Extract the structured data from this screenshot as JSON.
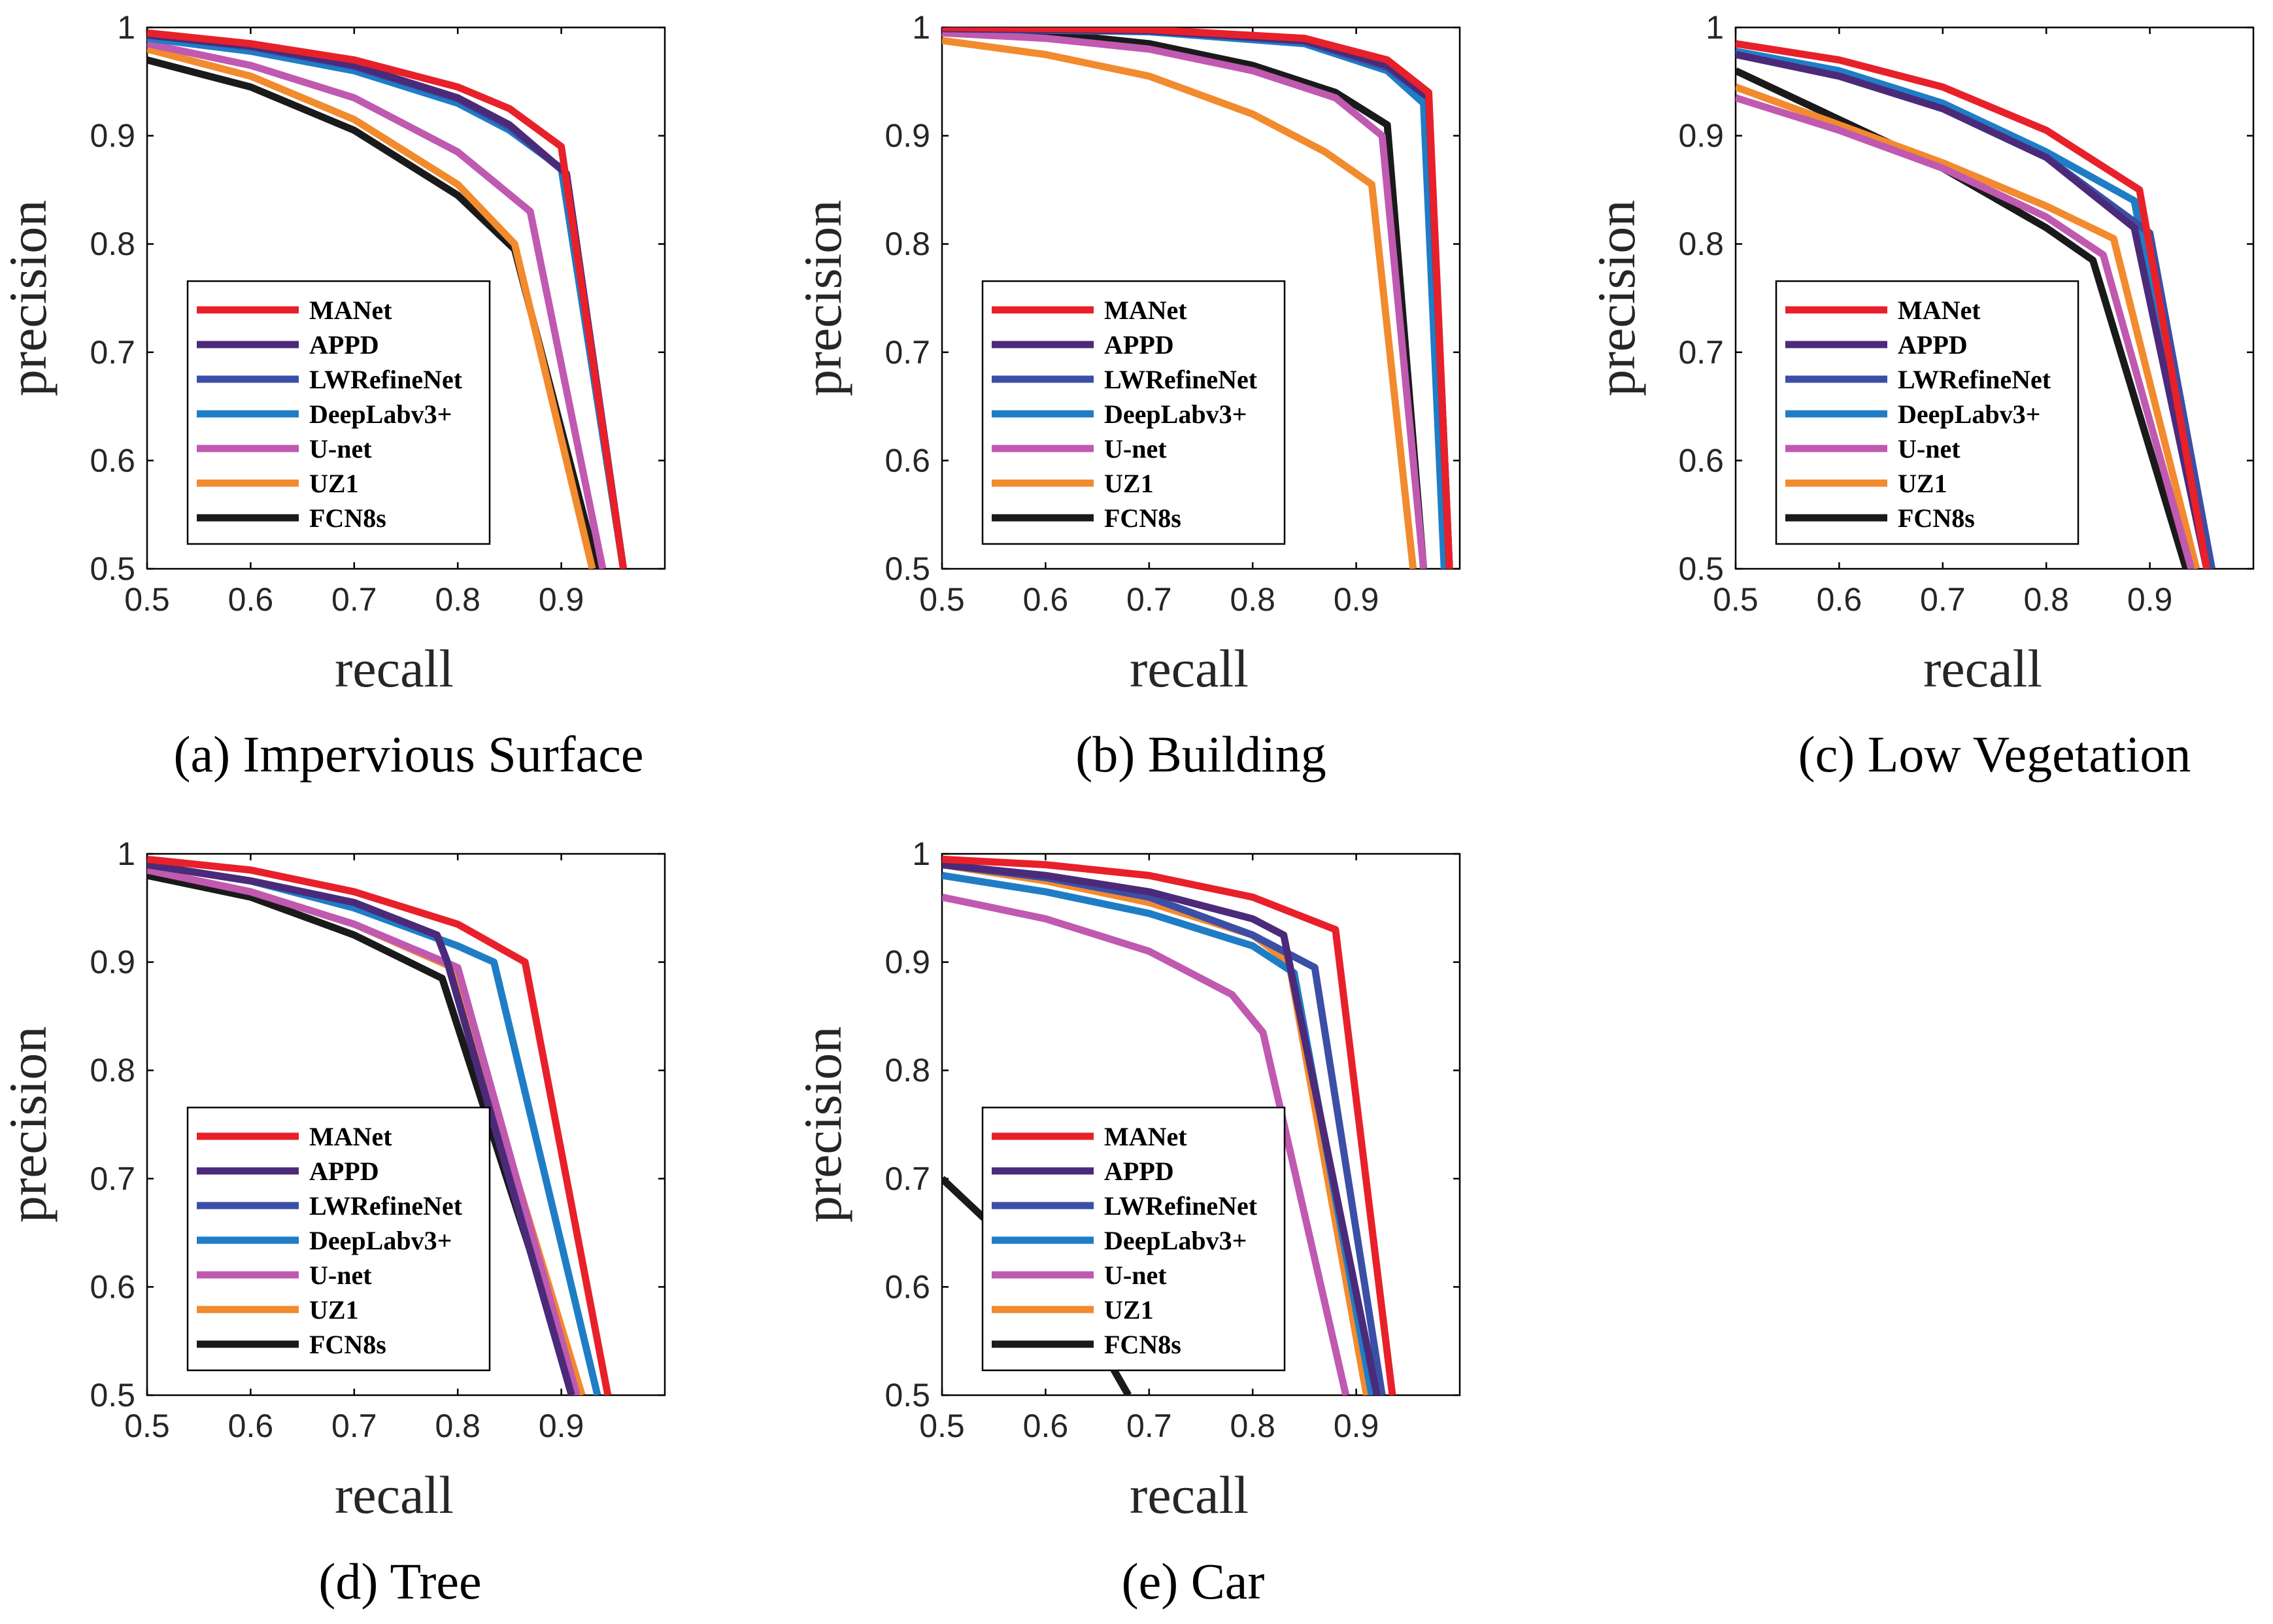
{
  "figure": {
    "series_colors": {
      "MANet": "#e8202a",
      "APPD": "#4b2a7a",
      "LWRefineNet": "#3b4fa6",
      "DeepLabv3+": "#1f7dc6",
      "U-net": "#c059b0",
      "UZ1": "#f28a2e",
      "FCN8s": "#1a1a1a"
    }
  },
  "chart_data": [
    {
      "type": "line",
      "caption": "(a)  Impervious Surface",
      "xlabel": "recall",
      "ylabel": "precision",
      "xlim": [
        0.5,
        1.0
      ],
      "ylim": [
        0.5,
        1.0
      ],
      "xticks": [
        0.5,
        0.6,
        0.7,
        0.8,
        0.9
      ],
      "xtick_labels": [
        "0.5",
        "0.6",
        "0.7",
        "0.8",
        "0.9"
      ],
      "yticks": [
        0.5,
        0.6,
        0.7,
        0.8,
        0.9,
        1.0
      ],
      "ytick_labels": [
        "0.5",
        "0.6",
        "0.7",
        "0.8",
        "0.9",
        "1"
      ],
      "legend_position": "lower-left",
      "series": [
        {
          "name": "MANet",
          "x": [
            0.5,
            0.6,
            0.7,
            0.8,
            0.85,
            0.9,
            0.96
          ],
          "y": [
            0.995,
            0.985,
            0.97,
            0.945,
            0.925,
            0.89,
            0.5
          ]
        },
        {
          "name": "APPD",
          "x": [
            0.5,
            0.6,
            0.7,
            0.8,
            0.85,
            0.905,
            0.96
          ],
          "y": [
            0.993,
            0.983,
            0.965,
            0.935,
            0.91,
            0.865,
            0.5
          ]
        },
        {
          "name": "LWRefineNet",
          "x": [
            0.5,
            0.6,
            0.7,
            0.8,
            0.85,
            0.905,
            0.96
          ],
          "y": [
            0.993,
            0.982,
            0.964,
            0.934,
            0.908,
            0.865,
            0.5
          ]
        },
        {
          "name": "DeepLabv3+",
          "x": [
            0.5,
            0.6,
            0.7,
            0.8,
            0.85,
            0.9,
            0.96
          ],
          "y": [
            0.99,
            0.978,
            0.96,
            0.93,
            0.905,
            0.87,
            0.5
          ]
        },
        {
          "name": "U-net",
          "x": [
            0.5,
            0.6,
            0.7,
            0.8,
            0.87,
            0.94
          ],
          "y": [
            0.985,
            0.965,
            0.935,
            0.885,
            0.83,
            0.5
          ]
        },
        {
          "name": "UZ1",
          "x": [
            0.5,
            0.6,
            0.7,
            0.8,
            0.855,
            0.93
          ],
          "y": [
            0.98,
            0.955,
            0.915,
            0.855,
            0.8,
            0.5
          ]
        },
        {
          "name": "FCN8s",
          "x": [
            0.5,
            0.6,
            0.7,
            0.8,
            0.855,
            0.935
          ],
          "y": [
            0.97,
            0.945,
            0.905,
            0.845,
            0.795,
            0.5
          ]
        }
      ]
    },
    {
      "type": "line",
      "caption": "(b) Building",
      "xlabel": "recall",
      "ylabel": "precision",
      "xlim": [
        0.5,
        1.0
      ],
      "ylim": [
        0.5,
        1.0
      ],
      "xticks": [
        0.5,
        0.6,
        0.7,
        0.8,
        0.9
      ],
      "xtick_labels": [
        "0.5",
        "0.6",
        "0.7",
        "0.8",
        "0.9"
      ],
      "yticks": [
        0.5,
        0.6,
        0.7,
        0.8,
        0.9,
        1.0
      ],
      "ytick_labels": [
        "0.5",
        "0.6",
        "0.7",
        "0.8",
        "0.9",
        "1"
      ],
      "legend_position": "lower-left",
      "series": [
        {
          "name": "MANet",
          "x": [
            0.5,
            0.7,
            0.85,
            0.93,
            0.97,
            0.99
          ],
          "y": [
            1.0,
            0.998,
            0.99,
            0.97,
            0.94,
            0.5
          ]
        },
        {
          "name": "APPD",
          "x": [
            0.5,
            0.7,
            0.85,
            0.93,
            0.97,
            0.99
          ],
          "y": [
            0.999,
            0.997,
            0.988,
            0.965,
            0.935,
            0.5
          ]
        },
        {
          "name": "LWRefineNet",
          "x": [
            0.5,
            0.7,
            0.85,
            0.93,
            0.97,
            0.99
          ],
          "y": [
            0.999,
            0.997,
            0.987,
            0.963,
            0.935,
            0.5
          ]
        },
        {
          "name": "DeepLabv3+",
          "x": [
            0.5,
            0.7,
            0.85,
            0.93,
            0.965,
            0.985
          ],
          "y": [
            0.999,
            0.996,
            0.985,
            0.96,
            0.93,
            0.5
          ]
        },
        {
          "name": "U-net",
          "x": [
            0.5,
            0.6,
            0.7,
            0.8,
            0.88,
            0.925,
            0.965
          ],
          "y": [
            0.995,
            0.99,
            0.98,
            0.96,
            0.935,
            0.9,
            0.5
          ]
        },
        {
          "name": "UZ1",
          "x": [
            0.5,
            0.6,
            0.7,
            0.8,
            0.87,
            0.915,
            0.955
          ],
          "y": [
            0.988,
            0.975,
            0.955,
            0.92,
            0.885,
            0.855,
            0.5
          ]
        },
        {
          "name": "FCN8s",
          "x": [
            0.5,
            0.6,
            0.7,
            0.8,
            0.88,
            0.93,
            0.965
          ],
          "y": [
            0.998,
            0.995,
            0.985,
            0.965,
            0.94,
            0.91,
            0.5
          ]
        }
      ]
    },
    {
      "type": "line",
      "caption": "(c) Low Vegetation",
      "xlabel": "recall",
      "ylabel": "precision",
      "xlim": [
        0.5,
        1.0
      ],
      "ylim": [
        0.5,
        1.0
      ],
      "xticks": [
        0.5,
        0.6,
        0.7,
        0.8,
        0.9
      ],
      "xtick_labels": [
        "0.5",
        "0.6",
        "0.7",
        "0.8",
        "0.9"
      ],
      "yticks": [
        0.5,
        0.6,
        0.7,
        0.8,
        0.9,
        1.0
      ],
      "ytick_labels": [
        "0.5",
        "0.6",
        "0.7",
        "0.8",
        "0.9",
        "1"
      ],
      "legend_position": "lower-left",
      "series": [
        {
          "name": "MANet",
          "x": [
            0.5,
            0.6,
            0.7,
            0.8,
            0.89,
            0.955
          ],
          "y": [
            0.985,
            0.97,
            0.945,
            0.905,
            0.85,
            0.5
          ]
        },
        {
          "name": "APPD",
          "x": [
            0.5,
            0.6,
            0.7,
            0.8,
            0.885,
            0.955
          ],
          "y": [
            0.975,
            0.955,
            0.925,
            0.88,
            0.815,
            0.5
          ]
        },
        {
          "name": "LWRefineNet",
          "x": [
            0.5,
            0.6,
            0.7,
            0.8,
            0.9,
            0.96
          ],
          "y": [
            0.975,
            0.955,
            0.925,
            0.88,
            0.81,
            0.5
          ]
        },
        {
          "name": "DeepLabv3+",
          "x": [
            0.5,
            0.6,
            0.7,
            0.8,
            0.885,
            0.955
          ],
          "y": [
            0.978,
            0.96,
            0.93,
            0.885,
            0.84,
            0.5
          ]
        },
        {
          "name": "U-net",
          "x": [
            0.5,
            0.6,
            0.7,
            0.8,
            0.855,
            0.94
          ],
          "y": [
            0.935,
            0.905,
            0.87,
            0.825,
            0.79,
            0.5
          ]
        },
        {
          "name": "UZ1",
          "x": [
            0.5,
            0.6,
            0.7,
            0.8,
            0.865,
            0.945
          ],
          "y": [
            0.945,
            0.91,
            0.875,
            0.835,
            0.805,
            0.5
          ]
        },
        {
          "name": "FCN8s",
          "x": [
            0.5,
            0.6,
            0.7,
            0.8,
            0.845,
            0.935
          ],
          "y": [
            0.96,
            0.915,
            0.87,
            0.815,
            0.785,
            0.5
          ]
        }
      ]
    },
    {
      "type": "line",
      "caption": "(d) Tree",
      "xlabel": "recall",
      "ylabel": "precision",
      "xlim": [
        0.5,
        1.0
      ],
      "ylim": [
        0.5,
        1.0
      ],
      "xticks": [
        0.5,
        0.6,
        0.7,
        0.8,
        0.9
      ],
      "xtick_labels": [
        "0.5",
        "0.6",
        "0.7",
        "0.8",
        "0.9"
      ],
      "yticks": [
        0.5,
        0.6,
        0.7,
        0.8,
        0.9,
        1.0
      ],
      "ytick_labels": [
        "0.5",
        "0.6",
        "0.7",
        "0.8",
        "0.9",
        "1"
      ],
      "legend_position": "lower-left",
      "series": [
        {
          "name": "MANet",
          "x": [
            0.5,
            0.6,
            0.7,
            0.8,
            0.865,
            0.945
          ],
          "y": [
            0.995,
            0.985,
            0.965,
            0.935,
            0.9,
            0.5
          ]
        },
        {
          "name": "APPD",
          "x": [
            0.5,
            0.6,
            0.7,
            0.78,
            0.79,
            0.91
          ],
          "y": [
            0.99,
            0.975,
            0.955,
            0.925,
            0.9,
            0.5
          ]
        },
        {
          "name": "LWRefineNet",
          "x": [
            0.5,
            0.6,
            0.7,
            0.78,
            0.79,
            0.91
          ],
          "y": [
            0.99,
            0.975,
            0.955,
            0.925,
            0.9,
            0.5
          ]
        },
        {
          "name": "DeepLabv3+",
          "x": [
            0.5,
            0.6,
            0.7,
            0.8,
            0.835,
            0.935
          ],
          "y": [
            0.99,
            0.975,
            0.95,
            0.915,
            0.9,
            0.5
          ]
        },
        {
          "name": "U-net",
          "x": [
            0.5,
            0.6,
            0.7,
            0.8,
            0.915
          ],
          "y": [
            0.985,
            0.965,
            0.935,
            0.895,
            0.5
          ]
        },
        {
          "name": "UZ1",
          "x": [
            0.5,
            0.6,
            0.7,
            0.795,
            0.92
          ],
          "y": [
            0.985,
            0.965,
            0.935,
            0.895,
            0.5
          ]
        },
        {
          "name": "FCN8s",
          "x": [
            0.5,
            0.6,
            0.7,
            0.785,
            0.915
          ],
          "y": [
            0.98,
            0.96,
            0.925,
            0.885,
            0.5
          ]
        }
      ]
    },
    {
      "type": "line",
      "caption": "(e) Car",
      "xlabel": "recall",
      "ylabel": "precision",
      "xlim": [
        0.5,
        1.0
      ],
      "ylim": [
        0.5,
        1.0
      ],
      "xticks": [
        0.5,
        0.6,
        0.7,
        0.8,
        0.9
      ],
      "xtick_labels": [
        "0.5",
        "0.6",
        "0.7",
        "0.8",
        "0.9"
      ],
      "yticks": [
        0.5,
        0.6,
        0.7,
        0.8,
        0.9,
        1.0
      ],
      "ytick_labels": [
        "0.5",
        "0.6",
        "0.7",
        "0.8",
        "0.9",
        "1"
      ],
      "legend_position": "lower-left",
      "series": [
        {
          "name": "MANet",
          "x": [
            0.5,
            0.6,
            0.7,
            0.8,
            0.88,
            0.935
          ],
          "y": [
            0.995,
            0.99,
            0.98,
            0.96,
            0.93,
            0.5
          ]
        },
        {
          "name": "APPD",
          "x": [
            0.5,
            0.6,
            0.7,
            0.8,
            0.83,
            0.92
          ],
          "y": [
            0.99,
            0.98,
            0.965,
            0.94,
            0.925,
            0.5
          ]
        },
        {
          "name": "LWRefineNet",
          "x": [
            0.5,
            0.6,
            0.7,
            0.8,
            0.86,
            0.925
          ],
          "y": [
            0.99,
            0.978,
            0.96,
            0.925,
            0.895,
            0.5
          ]
        },
        {
          "name": "DeepLabv3+",
          "x": [
            0.5,
            0.6,
            0.7,
            0.8,
            0.84,
            0.915
          ],
          "y": [
            0.98,
            0.965,
            0.945,
            0.915,
            0.89,
            0.5
          ]
        },
        {
          "name": "U-net",
          "x": [
            0.5,
            0.6,
            0.7,
            0.78,
            0.81,
            0.89
          ],
          "y": [
            0.96,
            0.94,
            0.91,
            0.87,
            0.835,
            0.5
          ]
        },
        {
          "name": "UZ1",
          "x": [
            0.5,
            0.6,
            0.7,
            0.8,
            0.835,
            0.91
          ],
          "y": [
            0.99,
            0.975,
            0.955,
            0.925,
            0.9,
            0.5
          ]
        },
        {
          "name": "FCN8s",
          "x": [
            0.5,
            0.6,
            0.65,
            0.68
          ],
          "y": [
            0.7,
            0.61,
            0.55,
            0.5
          ]
        }
      ]
    }
  ]
}
